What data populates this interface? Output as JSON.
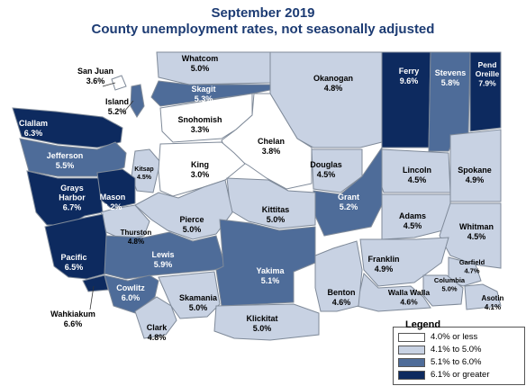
{
  "title": "September 2019",
  "subtitle": "County unemployment rates, not seasonally adjusted",
  "colors": {
    "low": "#ffffff",
    "mid_low": "#c8d2e3",
    "mid_high": "#4e6c99",
    "high": "#0d2a5f",
    "border": "#7f8a99",
    "title": "#1c3b73"
  },
  "legend": {
    "title": "Legend",
    "items": [
      {
        "label": "4.0% or less",
        "class": "low"
      },
      {
        "label": "4.1% to 5.0%",
        "class": "mid_low"
      },
      {
        "label": "5.1% to 6.0%",
        "class": "mid_high"
      },
      {
        "label": "6.1% or greater",
        "class": "high"
      }
    ]
  },
  "counties": [
    {
      "name": "Whatcom",
      "rate": "5.0%",
      "class": "mid_low"
    },
    {
      "name": "San Juan",
      "rate": "3.6%",
      "class": "low"
    },
    {
      "name": "Island",
      "rate": "5.2%",
      "class": "mid_high"
    },
    {
      "name": "Skagit",
      "rate": "5.3%",
      "class": "mid_high"
    },
    {
      "name": "Okanogan",
      "rate": "4.8%",
      "class": "mid_low"
    },
    {
      "name": "Ferry",
      "rate": "9.6%",
      "class": "high"
    },
    {
      "name": "Stevens",
      "rate": "5.8%",
      "class": "mid_high"
    },
    {
      "name": "Pend Oreille",
      "rate": "7.9%",
      "class": "high"
    },
    {
      "name": "Clallam",
      "rate": "6.3%",
      "class": "high"
    },
    {
      "name": "Jefferson",
      "rate": "5.5%",
      "class": "mid_high"
    },
    {
      "name": "Snohomish",
      "rate": "3.3%",
      "class": "low"
    },
    {
      "name": "Chelan",
      "rate": "3.8%",
      "class": "low"
    },
    {
      "name": "Douglas",
      "rate": "4.5%",
      "class": "mid_low"
    },
    {
      "name": "Lincoln",
      "rate": "4.5%",
      "class": "mid_low"
    },
    {
      "name": "Spokane",
      "rate": "4.9%",
      "class": "mid_low"
    },
    {
      "name": "Kitsap",
      "rate": "4.5%",
      "class": "mid_low"
    },
    {
      "name": "Grays Harbor",
      "rate": "6.7%",
      "class": "high"
    },
    {
      "name": "Mason",
      "rate": "6.2%",
      "class": "high"
    },
    {
      "name": "King",
      "rate": "3.0%",
      "class": "low"
    },
    {
      "name": "Grant",
      "rate": "5.2%",
      "class": "mid_high"
    },
    {
      "name": "Kittitas",
      "rate": "5.0%",
      "class": "mid_low"
    },
    {
      "name": "Adams",
      "rate": "4.5%",
      "class": "mid_low"
    },
    {
      "name": "Whitman",
      "rate": "4.5%",
      "class": "mid_low"
    },
    {
      "name": "Pierce",
      "rate": "5.0%",
      "class": "mid_low"
    },
    {
      "name": "Thurston",
      "rate": "4.8%",
      "class": "mid_low"
    },
    {
      "name": "Pacific",
      "rate": "6.5%",
      "class": "high"
    },
    {
      "name": "Lewis",
      "rate": "5.9%",
      "class": "mid_high"
    },
    {
      "name": "Yakima",
      "rate": "5.1%",
      "class": "mid_high"
    },
    {
      "name": "Franklin",
      "rate": "4.9%",
      "class": "mid_low"
    },
    {
      "name": "Garfield",
      "rate": "4.7%",
      "class": "mid_low"
    },
    {
      "name": "Columbia",
      "rate": "5.0%",
      "class": "mid_low"
    },
    {
      "name": "Walla Walla",
      "rate": "4.6%",
      "class": "mid_low"
    },
    {
      "name": "Asotin",
      "rate": "4.1%",
      "class": "mid_low"
    },
    {
      "name": "Benton",
      "rate": "4.6%",
      "class": "mid_low"
    },
    {
      "name": "Cowlitz",
      "rate": "6.0%",
      "class": "mid_high"
    },
    {
      "name": "Wahkiakum",
      "rate": "6.6%",
      "class": "high"
    },
    {
      "name": "Skamania",
      "rate": "5.0%",
      "class": "mid_low"
    },
    {
      "name": "Clark",
      "rate": "4.8%",
      "class": "mid_low"
    },
    {
      "name": "Klickitat",
      "rate": "5.0%",
      "class": "mid_low"
    }
  ]
}
